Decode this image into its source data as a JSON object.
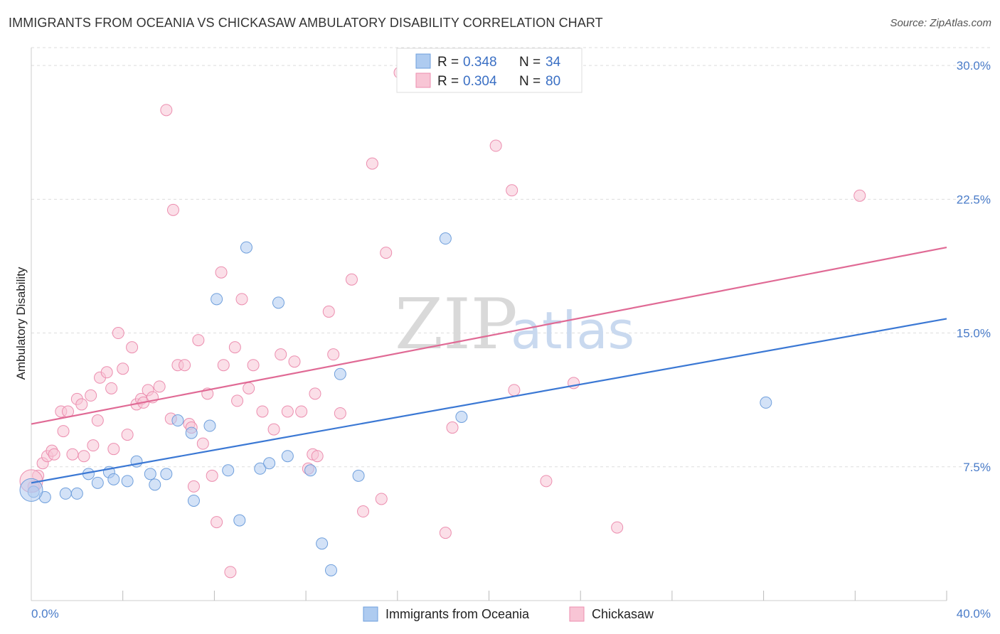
{
  "title": "IMMIGRANTS FROM OCEANIA VS CHICKASAW AMBULATORY DISABILITY CORRELATION CHART",
  "source": "Source: ZipAtlas.com",
  "watermark": {
    "zip": "ZIP",
    "atlas": "atlas"
  },
  "colors": {
    "blue_fill": "#aecbf0",
    "blue_stroke": "#6f9fdc",
    "blue_line": "#3b78d4",
    "pink_fill": "#f8c5d5",
    "pink_stroke": "#ec8eaf",
    "pink_line": "#e06a95",
    "grid": "#dddddd",
    "tick_label": "#4a7cc9"
  },
  "legend": {
    "rows": [
      {
        "r_label": "R =",
        "r_value": "0.348",
        "n_label": "N =",
        "n_value": "34"
      },
      {
        "r_label": "R =",
        "r_value": "0.304",
        "n_label": "N =",
        "n_value": "80"
      }
    ]
  },
  "bottom_legend": [
    "Immigrants from Oceania",
    "Chickasaw"
  ],
  "chart_data": {
    "type": "scatter",
    "title": "IMMIGRANTS FROM OCEANIA VS CHICKASAW AMBULATORY DISABILITY CORRELATION CHART",
    "xlabel": "",
    "ylabel": "Ambulatory Disability",
    "xlim": [
      0,
      40
    ],
    "ylim": [
      0,
      31
    ],
    "x_tick_labels": [
      "0.0%",
      "40.0%"
    ],
    "y_ticks": [
      7.5,
      15.0,
      22.5,
      30.0
    ],
    "y_tick_labels": [
      "7.5%",
      "15.0%",
      "22.5%",
      "30.0%"
    ],
    "grid": true,
    "legend_position": "top-center",
    "series": [
      {
        "name": "Immigrants from Oceania",
        "r": 0.348,
        "n": 34,
        "trend": {
          "x": [
            0,
            40
          ],
          "y": [
            6.6,
            15.8
          ]
        },
        "points": [
          [
            0.1,
            6.1
          ],
          [
            0.6,
            5.8
          ],
          [
            1.5,
            6.0
          ],
          [
            2.0,
            6.0
          ],
          [
            2.5,
            7.1
          ],
          [
            2.9,
            6.6
          ],
          [
            3.4,
            7.2
          ],
          [
            3.6,
            6.8
          ],
          [
            4.2,
            6.7
          ],
          [
            4.6,
            7.8
          ],
          [
            5.2,
            7.1
          ],
          [
            5.4,
            6.5
          ],
          [
            5.9,
            7.1
          ],
          [
            6.4,
            10.1
          ],
          [
            7.0,
            9.4
          ],
          [
            7.1,
            5.6
          ],
          [
            7.8,
            9.8
          ],
          [
            8.1,
            16.9
          ],
          [
            8.6,
            7.3
          ],
          [
            9.1,
            4.5
          ],
          [
            9.4,
            19.8
          ],
          [
            10.0,
            7.4
          ],
          [
            10.4,
            7.7
          ],
          [
            10.8,
            16.7
          ],
          [
            11.2,
            8.1
          ],
          [
            12.2,
            7.3
          ],
          [
            12.7,
            3.2
          ],
          [
            13.1,
            1.7
          ],
          [
            13.5,
            12.7
          ],
          [
            14.3,
            7.0
          ],
          [
            18.1,
            20.3
          ],
          [
            18.8,
            10.3
          ],
          [
            32.1,
            11.1
          ],
          [
            0.0,
            6.2
          ]
        ]
      },
      {
        "name": "Chickasaw",
        "r": 0.304,
        "n": 80,
        "trend": {
          "x": [
            0,
            40
          ],
          "y": [
            9.9,
            19.8
          ]
        },
        "points": [
          [
            0.1,
            6.4
          ],
          [
            0.3,
            7.0
          ],
          [
            0.5,
            7.7
          ],
          [
            0.7,
            8.1
          ],
          [
            0.9,
            8.4
          ],
          [
            1.0,
            8.2
          ],
          [
            1.3,
            10.6
          ],
          [
            1.6,
            10.6
          ],
          [
            1.8,
            8.2
          ],
          [
            1.4,
            9.5
          ],
          [
            2.0,
            11.3
          ],
          [
            2.2,
            11.0
          ],
          [
            2.3,
            8.1
          ],
          [
            2.6,
            11.5
          ],
          [
            2.7,
            8.7
          ],
          [
            2.9,
            10.1
          ],
          [
            3.0,
            12.5
          ],
          [
            3.3,
            12.8
          ],
          [
            3.5,
            11.9
          ],
          [
            3.6,
            8.5
          ],
          [
            3.8,
            15.0
          ],
          [
            4.0,
            13.0
          ],
          [
            4.2,
            9.3
          ],
          [
            4.4,
            14.2
          ],
          [
            4.6,
            11.0
          ],
          [
            4.8,
            11.3
          ],
          [
            4.9,
            11.1
          ],
          [
            5.1,
            11.8
          ],
          [
            5.3,
            11.4
          ],
          [
            5.6,
            12.0
          ],
          [
            5.9,
            27.5
          ],
          [
            6.1,
            10.2
          ],
          [
            6.2,
            21.9
          ],
          [
            6.4,
            13.2
          ],
          [
            6.7,
            13.2
          ],
          [
            6.9,
            9.9
          ],
          [
            7.0,
            9.7
          ],
          [
            7.1,
            6.4
          ],
          [
            7.3,
            14.6
          ],
          [
            7.5,
            8.8
          ],
          [
            7.7,
            11.6
          ],
          [
            7.9,
            7.0
          ],
          [
            8.1,
            4.4
          ],
          [
            8.3,
            18.4
          ],
          [
            8.4,
            13.2
          ],
          [
            8.7,
            1.6
          ],
          [
            8.9,
            14.2
          ],
          [
            9.0,
            11.2
          ],
          [
            9.2,
            16.9
          ],
          [
            9.5,
            11.9
          ],
          [
            9.7,
            13.2
          ],
          [
            10.1,
            10.6
          ],
          [
            10.6,
            9.6
          ],
          [
            10.9,
            13.8
          ],
          [
            11.2,
            10.6
          ],
          [
            11.5,
            13.4
          ],
          [
            11.8,
            10.6
          ],
          [
            12.1,
            7.4
          ],
          [
            12.3,
            8.2
          ],
          [
            12.5,
            8.1
          ],
          [
            12.4,
            11.6
          ],
          [
            13.0,
            16.2
          ],
          [
            13.2,
            13.8
          ],
          [
            13.5,
            10.5
          ],
          [
            14.0,
            18.0
          ],
          [
            14.5,
            5.0
          ],
          [
            14.9,
            24.5
          ],
          [
            15.3,
            5.7
          ],
          [
            15.5,
            19.5
          ],
          [
            16.1,
            29.6
          ],
          [
            18.1,
            3.8
          ],
          [
            18.4,
            9.7
          ],
          [
            20.3,
            25.5
          ],
          [
            21.0,
            23.0
          ],
          [
            21.1,
            11.8
          ],
          [
            22.5,
            6.7
          ],
          [
            23.7,
            12.2
          ],
          [
            25.6,
            4.1
          ],
          [
            36.2,
            22.7
          ],
          [
            0.0,
            6.7
          ]
        ]
      }
    ]
  }
}
